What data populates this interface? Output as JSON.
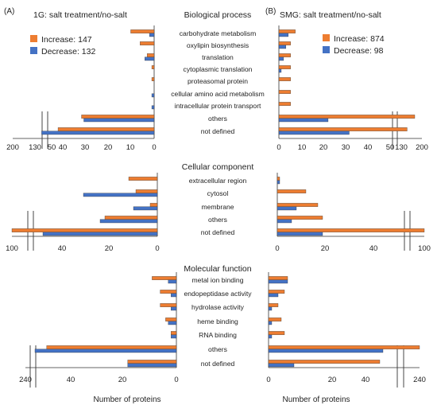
{
  "colors": {
    "increase": "#ED7D31",
    "decrease": "#4472C4",
    "axis": "#333333"
  },
  "panels": {
    "left": "(A)",
    "right": "(B)"
  },
  "left_title": "1G: salt treatment/no-salt",
  "right_title": "SMG: salt treatment/no-salt",
  "legend_left": {
    "increase": "Increase: 147",
    "decrease": "Decrease: 132"
  },
  "legend_right": {
    "increase": "Increase: 874",
    "decrease": "Decrease: 98"
  },
  "sections": {
    "bp": "Biological process",
    "cc": "Cellular component",
    "mf": "Molecular function"
  },
  "xlabel_left": "Number of proteins",
  "xlabel_right": "Number of proteins",
  "chart_data": [
    {
      "type": "bar",
      "title": "Biological process",
      "side": "1G: salt treatment/no-salt",
      "categories": [
        "carbohydrate metabolism",
        "oxylipin biosynthesis",
        "translation",
        "cytoplasmic translation",
        "proteasomal protein",
        "cellular amino acid metabolism",
        "intracellular protein transport",
        "others",
        "not defined"
      ],
      "series": [
        {
          "name": "Increase: 147",
          "values": [
            10,
            6,
            3,
            1,
            1,
            0,
            0,
            31,
            41
          ]
        },
        {
          "name": "Decrease: 132",
          "values": [
            2,
            0,
            4,
            0,
            0,
            1,
            1,
            30,
            48
          ]
        }
      ],
      "xticks": [
        "200",
        "130",
        "50",
        "40",
        "30",
        "20",
        "10",
        "0"
      ],
      "xlim": [
        0,
        50
      ],
      "axis_break": true
    },
    {
      "type": "bar",
      "title": "Biological process",
      "side": "SMG: salt treatment/no-salt",
      "categories": [
        "carbohydrate metabolism",
        "oxylipin biosynthesis",
        "translation",
        "cytoplasmic translation",
        "proteasomal protein",
        "cellular amino acid metabolism",
        "intracellular protein transport",
        "others",
        "not defined"
      ],
      "series": [
        {
          "name": "Increase: 874",
          "values": [
            7,
            5,
            5,
            5,
            5,
            5,
            5,
            190,
            130
          ]
        },
        {
          "name": "Decrease: 98",
          "values": [
            4,
            3,
            2,
            1,
            0,
            0,
            0,
            21,
            30
          ]
        }
      ],
      "xticks": [
        "0",
        "10",
        "20",
        "30",
        "40",
        "50",
        "130",
        "200"
      ],
      "xlim": [
        0,
        50
      ],
      "axis_break": true
    },
    {
      "type": "bar",
      "title": "Cellular component",
      "side": "1G: salt treatment/no-salt",
      "categories": [
        "extracellular region",
        "cytosol",
        "membrane",
        "others",
        "not defined"
      ],
      "series": [
        {
          "name": "Increase: 147",
          "values": [
            12,
            9,
            3,
            22,
            100
          ]
        },
        {
          "name": "Decrease: 132",
          "values": [
            0,
            31,
            10,
            24,
            48
          ]
        }
      ],
      "xticks": [
        "100",
        "40",
        "20",
        "0"
      ],
      "xlim": [
        0,
        50
      ],
      "axis_break": true
    },
    {
      "type": "bar",
      "title": "Cellular component",
      "side": "SMG: salt treatment/no-salt",
      "categories": [
        "extracellular region",
        "cytosol",
        "membrane",
        "others",
        "not defined"
      ],
      "series": [
        {
          "name": "Increase: 874",
          "values": [
            1,
            12,
            17,
            19,
            100
          ]
        },
        {
          "name": "Decrease: 98",
          "values": [
            1,
            0,
            8,
            6,
            19
          ]
        }
      ],
      "xticks": [
        "0",
        "20",
        "40",
        "100"
      ],
      "xlim": [
        0,
        50
      ],
      "axis_break": true
    },
    {
      "type": "bar",
      "title": "Molecular function",
      "side": "1G: salt treatment/no-salt",
      "categories": [
        "metal ion binding",
        "endopeptidase activity",
        "hydrolase activity",
        "heme binding",
        "RNA binding",
        "others",
        "not defined"
      ],
      "series": [
        {
          "name": "Increase: 147",
          "values": [
            9,
            6,
            6,
            4,
            2,
            48,
            18
          ]
        },
        {
          "name": "Decrease: 132",
          "values": [
            3,
            2,
            2,
            3,
            2,
            53,
            18
          ]
        }
      ],
      "xticks": [
        "240",
        "40",
        "20",
        "0"
      ],
      "xlim": [
        0,
        55
      ],
      "axis_break": true
    },
    {
      "type": "bar",
      "title": "Molecular function",
      "side": "SMG: salt treatment/no-salt",
      "categories": [
        "metal ion binding",
        "endopeptidase activity",
        "hydrolase activity",
        "heme binding",
        "RNA binding",
        "others",
        "not defined"
      ],
      "series": [
        {
          "name": "Increase: 874",
          "values": [
            6,
            5,
            3,
            4,
            5,
            240,
            35
          ]
        },
        {
          "name": "Decrease: 98",
          "values": [
            6,
            3,
            1,
            1,
            1,
            36,
            8
          ]
        }
      ],
      "xticks": [
        "0",
        "20",
        "40",
        "240"
      ],
      "xlim": [
        0,
        55
      ],
      "axis_break": true
    }
  ]
}
